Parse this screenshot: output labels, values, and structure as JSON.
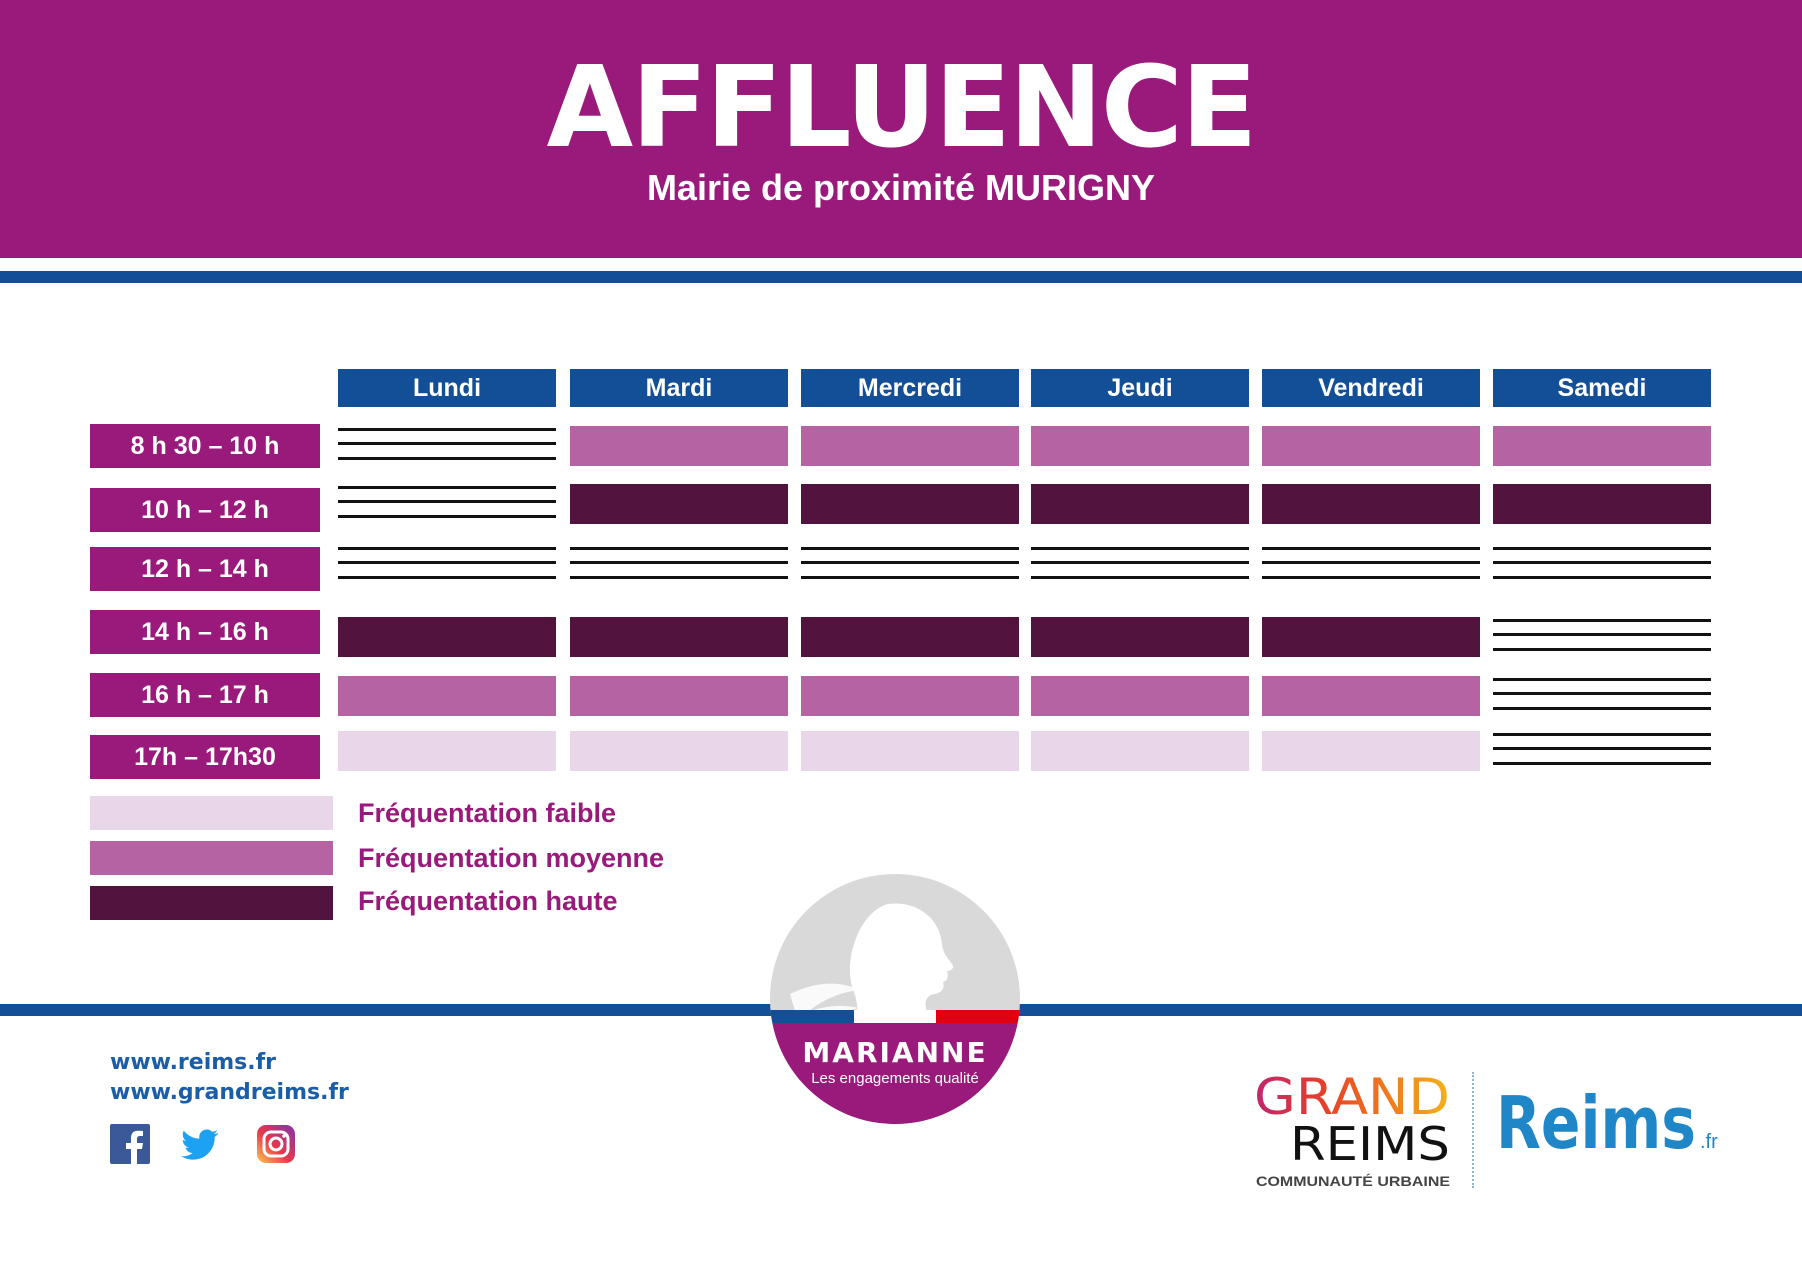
{
  "header": {
    "title": "AFFLUENCE",
    "subtitle": "Mairie de proximité MURIGNY"
  },
  "days": [
    "Lundi",
    "Mardi",
    "Mercredi",
    "Jeudi",
    "Vendredi",
    "Samedi"
  ],
  "slots": [
    "8 h 30 – 10 h",
    "10 h – 12 h",
    "12 h – 14 h",
    "14 h – 16 h",
    "16 h – 17 h",
    "17h – 17h30"
  ],
  "schedule": [
    [
      "closed",
      "mid",
      "mid",
      "mid",
      "mid",
      "mid"
    ],
    [
      "closed",
      "high",
      "high",
      "high",
      "high",
      "high"
    ],
    [
      "closed",
      "closed",
      "closed",
      "closed",
      "closed",
      "closed"
    ],
    [
      "high",
      "high",
      "high",
      "high",
      "high",
      "closed"
    ],
    [
      "mid",
      "mid",
      "mid",
      "mid",
      "mid",
      "closed"
    ],
    [
      "low",
      "low",
      "low",
      "low",
      "low",
      "closed"
    ]
  ],
  "legend": [
    {
      "level": "low",
      "label": "Fréquentation faible"
    },
    {
      "level": "mid",
      "label": "Fréquentation moyenne"
    },
    {
      "level": "high",
      "label": "Fréquentation haute"
    }
  ],
  "colors": {
    "brand_purple": "#9a1a7c",
    "navy": "#134f97",
    "low": "#e9d6e8",
    "mid": "#b563a2",
    "high": "#52143f"
  },
  "footer": {
    "links": [
      "www.reims.fr",
      "www.grandreims.fr"
    ],
    "social_icons": [
      "facebook-icon",
      "twitter-icon",
      "instagram-icon"
    ],
    "marianne": {
      "title": "MARIANNE",
      "tagline": "Les engagements qualité"
    },
    "grand_reims": {
      "line1": "GRAND",
      "line2": "REIMS",
      "line3": "COMMUNAUTÉ URBAINE"
    },
    "reims": {
      "name": "Reims",
      "suffix": ".fr"
    }
  }
}
